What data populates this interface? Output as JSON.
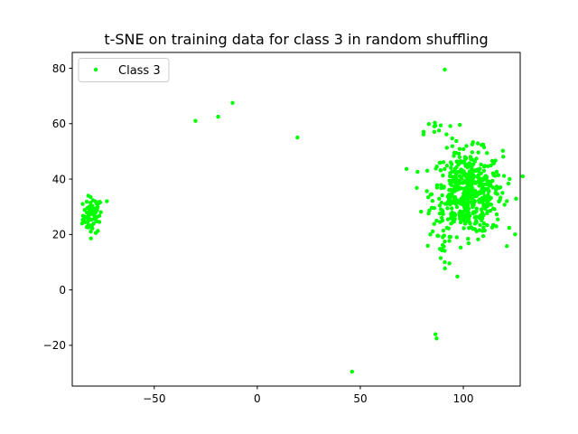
{
  "chart_data": {
    "type": "scatter",
    "title": "t-SNE on training data for class 3 in random shuffling",
    "xlabel": "",
    "ylabel": "",
    "xlim": [
      -89.8,
      127.6
    ],
    "ylim": [
      -34.7,
      85.7
    ],
    "xticks": [
      -50,
      0,
      50,
      100
    ],
    "yticks": [
      -20,
      0,
      20,
      40,
      60,
      80
    ],
    "grid": false,
    "legend": {
      "location": "top-left"
    },
    "series": [
      {
        "name": "Class 3",
        "color": "#00ff00",
        "clusters": [
          {
            "center": [
              -80,
              27
            ],
            "spread": [
              2.3,
              3.2
            ],
            "count": 70
          },
          {
            "center": [
              102,
              35
            ],
            "spread": [
              8.5,
              7.5
            ],
            "count": 520
          },
          {
            "center": [
              88,
              57
            ],
            "spread": [
              3.5,
              2.5
            ],
            "count": 12
          },
          {
            "center": [
              90,
              15
            ],
            "spread": [
              1.5,
              4
            ],
            "count": 10
          }
        ],
        "points": [
          [
            91,
            79.5
          ],
          [
            -30,
            61
          ],
          [
            -19,
            62.5
          ],
          [
            -12,
            67.5
          ],
          [
            19.5,
            55
          ],
          [
            46,
            -29.5
          ],
          [
            86.5,
            -16
          ],
          [
            87,
            -17.5
          ],
          [
            -84,
            25.5
          ],
          [
            -85,
            24
          ],
          [
            -82,
            34
          ],
          [
            -73,
            32
          ],
          [
            87,
            25
          ],
          [
            84,
            20
          ],
          [
            114,
            22.5
          ],
          [
            119,
            35
          ],
          [
            118,
            37
          ],
          [
            91,
            10
          ],
          [
            89,
            11.5
          ],
          [
            91,
            17.5
          ]
        ]
      }
    ]
  }
}
